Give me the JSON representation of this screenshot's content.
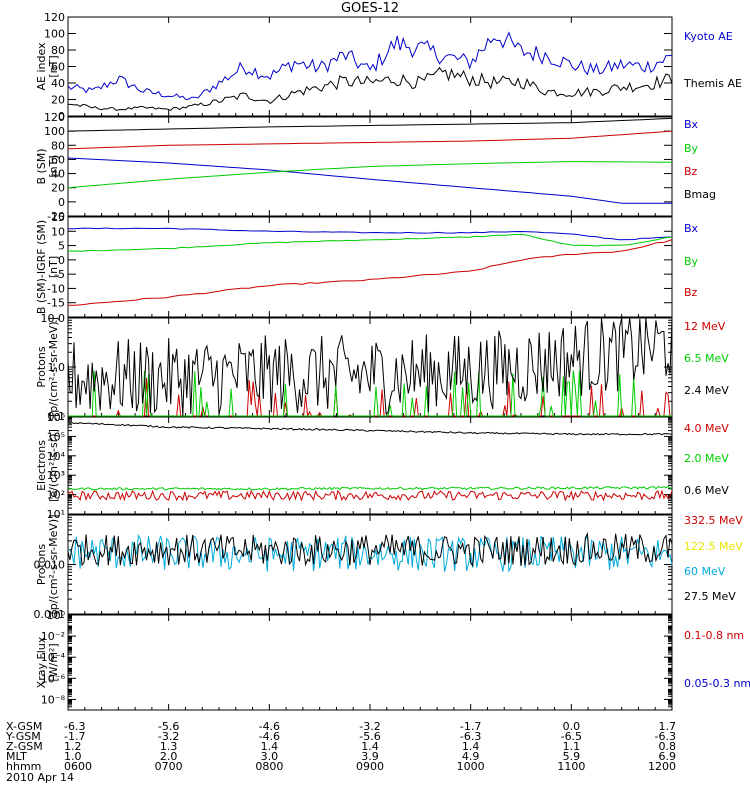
{
  "chart_data": {
    "type": "line",
    "title": "GOES-12",
    "time_axis": {
      "date_label": "2010 Apr 14",
      "rows": [
        {
          "label": "X-GSM",
          "values": [
            "-6.3",
            "-5.6",
            "-4.6",
            "-3.2",
            "-1.7",
            "0.0",
            "1.7"
          ]
        },
        {
          "label": "Y-GSM",
          "values": [
            "-1.7",
            "-3.2",
            "-4.6",
            "-5.6",
            "-6.3",
            "-6.5",
            "-6.3"
          ]
        },
        {
          "label": "Z-GSM",
          "values": [
            "1.2",
            "1.3",
            "1.4",
            "1.4",
            "1.4",
            "1.1",
            "0.8"
          ]
        },
        {
          "label": "MLT",
          "values": [
            "1.0",
            "2.0",
            "3.0",
            "3.9",
            "4.9",
            "5.9",
            "6.9"
          ]
        },
        {
          "label": "hhmm",
          "values": [
            "0600",
            "0700",
            "0800",
            "0900",
            "1000",
            "1100",
            "1200"
          ]
        }
      ]
    },
    "panels": [
      {
        "id": "ae",
        "ylabel": "AE index [nT]",
        "scale": "linear",
        "ylim": [
          0,
          120
        ],
        "ticks": [
          0,
          20,
          40,
          60,
          80,
          100,
          120
        ],
        "tick_labels": [
          "0",
          "20",
          "40",
          "60",
          "80",
          "100",
          "120"
        ],
        "series": [
          {
            "name": "Kyoto AE",
            "color": "#0000cc",
            "x": [
              0,
              0.25,
              0.5,
              0.75,
              1,
              1.25,
              1.5,
              1.75,
              2,
              2.25,
              2.5,
              2.75,
              3,
              3.25,
              3.5,
              3.75,
              4,
              4.25,
              4.5,
              4.75,
              5,
              5.25,
              5.5,
              5.75,
              6
            ],
            "y": [
              35,
              30,
              45,
              30,
              25,
              20,
              40,
              60,
              48,
              65,
              58,
              74,
              55,
              88,
              82,
              72,
              65,
              100,
              78,
              74,
              62,
              55,
              62,
              60,
              72
            ]
          },
          {
            "name": "Themis AE",
            "color": "#000000",
            "x": [
              0,
              0.25,
              0.5,
              0.75,
              1,
              1.25,
              1.5,
              1.75,
              2,
              2.25,
              2.5,
              2.75,
              3,
              3.25,
              3.5,
              3.75,
              4,
              4.25,
              4.5,
              4.75,
              5,
              5.25,
              5.5,
              5.75,
              6
            ],
            "y": [
              15,
              10,
              8,
              10,
              8,
              12,
              18,
              25,
              18,
              28,
              35,
              42,
              40,
              45,
              40,
              52,
              45,
              40,
              42,
              30,
              28,
              30,
              35,
              38,
              45
            ]
          }
        ]
      },
      {
        "id": "b",
        "ylabel": "B (SM) [nT]",
        "scale": "linear",
        "ylim": [
          -20,
          120
        ],
        "ticks": [
          -20,
          0,
          20,
          40,
          60,
          80,
          100,
          120
        ],
        "tick_labels": [
          "-20",
          "0",
          "20",
          "40",
          "60",
          "80",
          "100",
          "120"
        ],
        "series": [
          {
            "name": "Bx",
            "color": "#0000cc",
            "x": [
              0,
              1,
              2,
              3,
              4,
              5,
              5.5,
              6
            ],
            "y": [
              62,
              55,
              45,
              32,
              20,
              8,
              -2,
              -2
            ]
          },
          {
            "name": "By",
            "color": "#00cc00",
            "x": [
              0,
              1,
              2,
              3,
              4,
              5,
              6
            ],
            "y": [
              20,
              32,
              42,
              50,
              54,
              57,
              56
            ]
          },
          {
            "name": "Bz",
            "color": "#cc0000",
            "x": [
              0,
              1,
              2,
              3,
              4,
              5,
              6
            ],
            "y": [
              75,
              80,
              82,
              84,
              86,
              90,
              100
            ]
          },
          {
            "name": "Bmag",
            "color": "#000000",
            "x": [
              0,
              1,
              2,
              3,
              4,
              5,
              6
            ],
            "y": [
              100,
              103,
              106,
              108,
              110,
              112,
              118
            ]
          }
        ]
      },
      {
        "id": "bdiff",
        "ylabel": "B (SM)-IGRF (SM) [nT]",
        "scale": "linear",
        "ylim": [
          -20,
          15
        ],
        "ticks": [
          -15,
          -10,
          -5,
          0,
          5,
          10,
          15
        ],
        "tick_labels": [
          "-15",
          "-10",
          "-5",
          "0",
          "5",
          "10",
          "15"
        ],
        "series": [
          {
            "name": "Bx",
            "color": "#0000cc",
            "x": [
              0,
              1,
              2,
              3,
              4,
              4.5,
              5,
              5.5,
              6
            ],
            "y": [
              11,
              11,
              10,
              9.5,
              9.5,
              10,
              9,
              7,
              8
            ]
          },
          {
            "name": "By",
            "color": "#00cc00",
            "x": [
              0,
              1,
              2,
              3,
              4,
              4.5,
              5,
              5.5,
              6
            ],
            "y": [
              3,
              4,
              6,
              7,
              8,
              9,
              5,
              5,
              8
            ]
          },
          {
            "name": "Bz",
            "color": "#cc0000",
            "x": [
              0,
              1,
              2,
              3,
              4,
              4.5,
              5,
              5.5,
              6
            ],
            "y": [
              -16,
              -13,
              -9,
              -7,
              -4,
              0,
              2,
              3,
              7
            ]
          }
        ]
      },
      {
        "id": "protons_low",
        "ylabel": "Protons [p/(cm2-s-sr-MeV)]",
        "scale": "log",
        "ylim": [
          0.1,
          10
        ],
        "ticks": [
          0.1,
          1,
          10
        ],
        "tick_labels": [
          "0.1",
          "1.0",
          "10.0"
        ],
        "series": [
          {
            "name": "12 MeV",
            "color": "#cc0000",
            "x": [
              0,
              1,
              2,
              3,
              4,
              5,
              6
            ],
            "y": [
              0.1,
              0.1,
              0.1,
              0.1,
              0.1,
              0.1,
              0.1
            ]
          },
          {
            "name": "6.5 MeV",
            "color": "#00cc00",
            "x": [
              0,
              1,
              2,
              3,
              4,
              5,
              6
            ],
            "y": [
              0.15,
              0.15,
              0.15,
              0.15,
              0.15,
              0.15,
              0.15
            ]
          },
          {
            "name": "2.4 MeV",
            "color": "#000000",
            "x": [
              0,
              1,
              2,
              3,
              4,
              4.5,
              5,
              5.5,
              6
            ],
            "y": [
              0.6,
              0.6,
              0.7,
              0.7,
              0.8,
              1.0,
              1.5,
              2.0,
              3.0
            ]
          }
        ]
      },
      {
        "id": "electrons",
        "ylabel": "Electrons [e/(cm2-s-sr)]",
        "scale": "log",
        "ylim": [
          10,
          1000000
        ],
        "ticks": [
          10,
          100,
          1000,
          10000,
          100000,
          1000000
        ],
        "tick_labels": [
          "10¹",
          "10²",
          "10³",
          "10⁴",
          "10⁵",
          "10⁶"
        ],
        "series": [
          {
            "name": "4.0 MeV",
            "color": "#cc0000",
            "x": [
              0,
              1,
              2,
              3,
              4,
              5,
              6
            ],
            "y": [
              90,
              90,
              90,
              90,
              90,
              90,
              90
            ]
          },
          {
            "name": "2.0 MeV",
            "color": "#00cc00",
            "x": [
              0,
              1,
              2,
              3,
              4,
              5,
              6
            ],
            "y": [
              200,
              200,
              200,
              210,
              210,
              220,
              230
            ]
          },
          {
            "name": "0.6 MeV",
            "color": "#000000",
            "x": [
              0,
              1,
              2,
              3,
              4,
              5,
              6
            ],
            "y": [
              500000,
              300000,
              250000,
              200000,
              150000,
              130000,
              130000
            ]
          }
        ]
      },
      {
        "id": "protons_high",
        "ylabel": "Protons [p/(cm2-s-sr-MeV)]",
        "scale": "log",
        "ylim": [
          0.001,
          0.1
        ],
        "ticks": [
          0.001,
          0.01,
          0.1
        ],
        "tick_labels": [
          "0.001",
          "0.010",
          ""
        ],
        "series": [
          {
            "name": "332.5 MeV",
            "color": "#cc0000",
            "x": [],
            "y": []
          },
          {
            "name": "122.5 MeV",
            "color": "#e6e600",
            "x": [],
            "y": []
          },
          {
            "name": "60 MeV",
            "color": "#00aadd",
            "x": [
              0,
              1,
              2,
              3,
              4,
              5,
              6
            ],
            "y": [
              0.018,
              0.017,
              0.016,
              0.017,
              0.016,
              0.017,
              0.016
            ]
          },
          {
            "name": "27.5 MeV",
            "color": "#000000",
            "x": [
              0,
              1,
              2,
              3,
              4,
              5,
              6
            ],
            "y": [
              0.02,
              0.02,
              0.019,
              0.02,
              0.019,
              0.02,
              0.021
            ]
          }
        ]
      },
      {
        "id": "xray",
        "ylabel": "Xray Flux [W/m2]",
        "scale": "log",
        "ylim": [
          1e-09,
          1
        ],
        "ticks": [
          1e-08,
          1e-06,
          0.0001,
          0.01,
          1
        ],
        "tick_labels": [
          "10⁻⁸",
          "10⁻⁶",
          "10⁻⁴",
          "10⁻²",
          "10⁰"
        ],
        "series": [
          {
            "name": "0.1-0.8 nm",
            "color": "#cc0000",
            "x": [],
            "y": []
          },
          {
            "name": "0.05-0.3 nm",
            "color": "#0000cc",
            "x": [],
            "y": []
          }
        ]
      }
    ]
  }
}
